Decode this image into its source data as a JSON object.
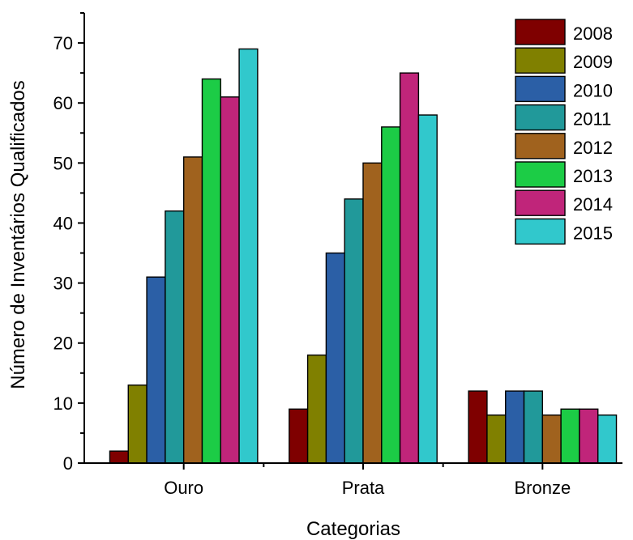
{
  "chart_data": {
    "type": "bar",
    "title": "",
    "xlabel": "Categorias",
    "ylabel": "Número de Inventários Qualificados",
    "categories": [
      "Ouro",
      "Prata",
      "Bronze"
    ],
    "ylim": [
      0,
      75
    ],
    "yticks": [
      0,
      10,
      20,
      30,
      40,
      50,
      60,
      70
    ],
    "ytick_labels": [
      "0",
      "10",
      "20",
      "30",
      "40",
      "50",
      "60",
      "70"
    ],
    "grid": false,
    "legend_position": "top-right",
    "series": [
      {
        "name": "2008",
        "color": "#7f0000",
        "values": [
          2,
          9,
          12
        ]
      },
      {
        "name": "2009",
        "color": "#808000",
        "values": [
          13,
          18,
          8
        ]
      },
      {
        "name": "2010",
        "color": "#2b5fa6",
        "values": [
          31,
          35,
          12
        ]
      },
      {
        "name": "2011",
        "color": "#21999a",
        "values": [
          42,
          44,
          12
        ]
      },
      {
        "name": "2012",
        "color": "#a0621e",
        "values": [
          51,
          50,
          8
        ]
      },
      {
        "name": "2013",
        "color": "#1ccc46",
        "values": [
          64,
          56,
          9
        ]
      },
      {
        "name": "2014",
        "color": "#c0257a",
        "values": [
          61,
          65,
          9
        ]
      },
      {
        "name": "2015",
        "color": "#31c8cc",
        "values": [
          69,
          58,
          8
        ]
      }
    ]
  }
}
